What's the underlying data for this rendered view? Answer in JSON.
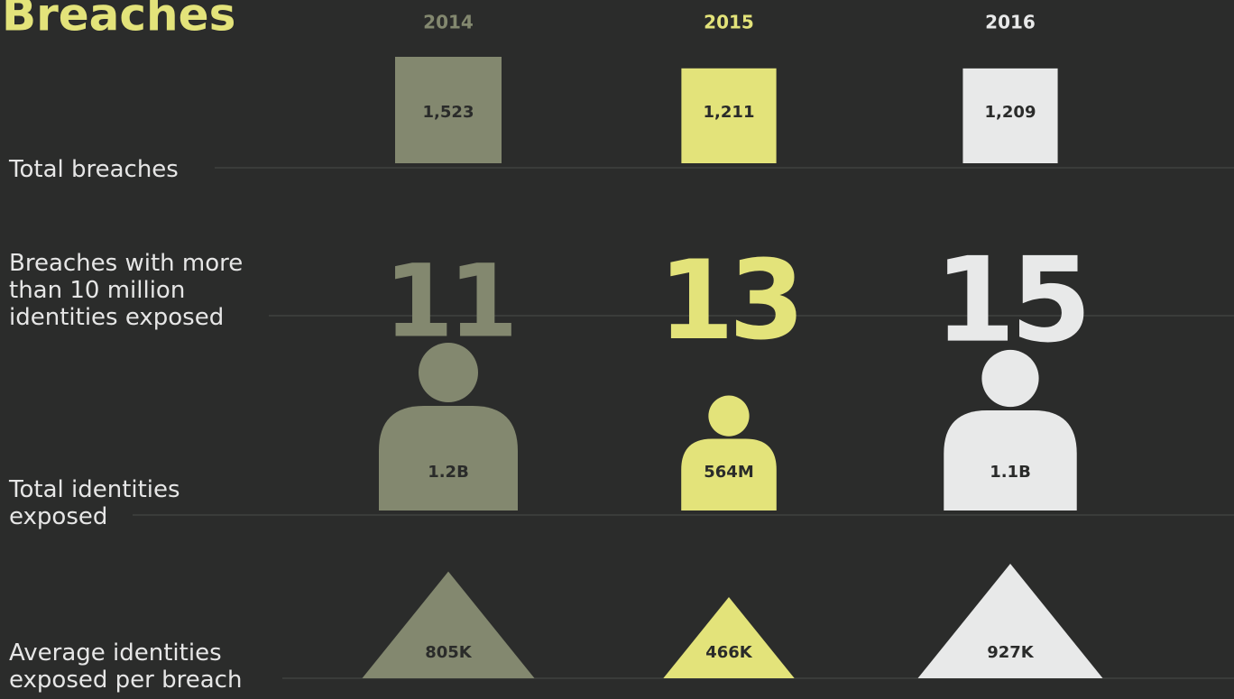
{
  "chart_data": {
    "type": "pictograph",
    "title": "Breaches",
    "categories": [
      "2014",
      "2015",
      "2016"
    ],
    "colors": [
      "#83886f",
      "#e3e37a",
      "#e8e9e9"
    ],
    "series": [
      {
        "name": "Total breaches",
        "shape": "square",
        "values": [
          1523,
          1211,
          1209
        ],
        "value_labels": [
          "1,523",
          "1,211",
          "1,209"
        ]
      },
      {
        "name": "Breaches with more than 10 million identities exposed",
        "shape": "number",
        "values": [
          11,
          13,
          15
        ]
      },
      {
        "name": "Total identities exposed",
        "shape": "person",
        "values": [
          1200000000,
          564000000,
          1100000000
        ],
        "value_labels": [
          "1.2B",
          "564M",
          "1.1B"
        ]
      },
      {
        "name": "Average identities exposed per breach",
        "shape": "triangle",
        "values": [
          805000,
          466000,
          927000
        ],
        "value_labels": [
          "805K",
          "466K",
          "927K"
        ]
      }
    ]
  }
}
